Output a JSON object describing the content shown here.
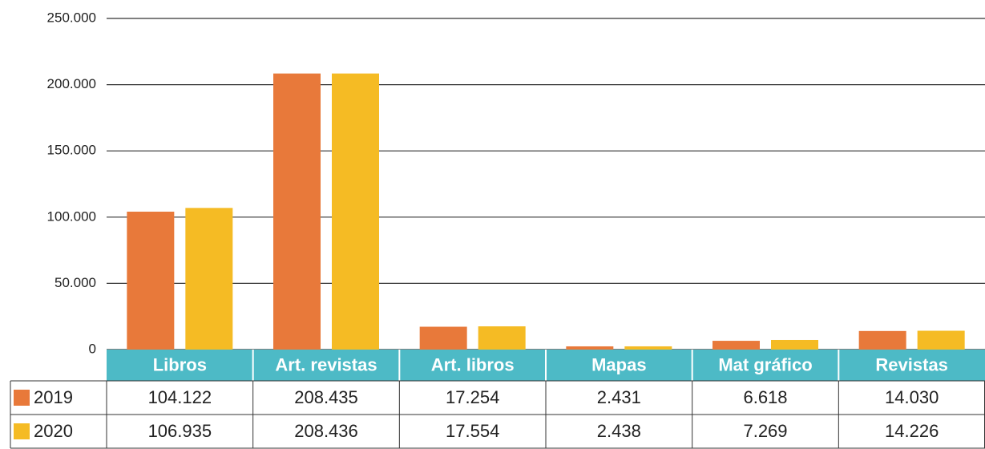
{
  "chart_data": {
    "type": "bar",
    "categories": [
      "Libros",
      "Art. revistas",
      "Art. libros",
      "Mapas",
      "Mat gráfico",
      "Revistas"
    ],
    "series": [
      {
        "name": "2019",
        "color": "#e8793a",
        "values": [
          104122,
          208435,
          17254,
          2431,
          6618,
          14030
        ],
        "value_labels": [
          "104.122",
          "208.435",
          "17.254",
          "2.431",
          "6.618",
          "14.030"
        ]
      },
      {
        "name": "2020",
        "color": "#f5bb24",
        "values": [
          106935,
          208436,
          17554,
          2438,
          7269,
          14226
        ],
        "value_labels": [
          "106.935",
          "208.436",
          "17.554",
          "2.438",
          "7.269",
          "14.226"
        ]
      }
    ],
    "ylim": [
      0,
      250000
    ],
    "yticks": [
      0,
      {
        "value": 50000,
        "label": "50.000"
      },
      {
        "value": 100000,
        "label": "100.000"
      },
      {
        "value": 150000,
        "label": "150.000"
      },
      {
        "value": 200000,
        "label": "200.000"
      },
      {
        "value": 250000,
        "label": "250.000"
      }
    ],
    "grid": true,
    "header_color": "#4dbac6"
  }
}
